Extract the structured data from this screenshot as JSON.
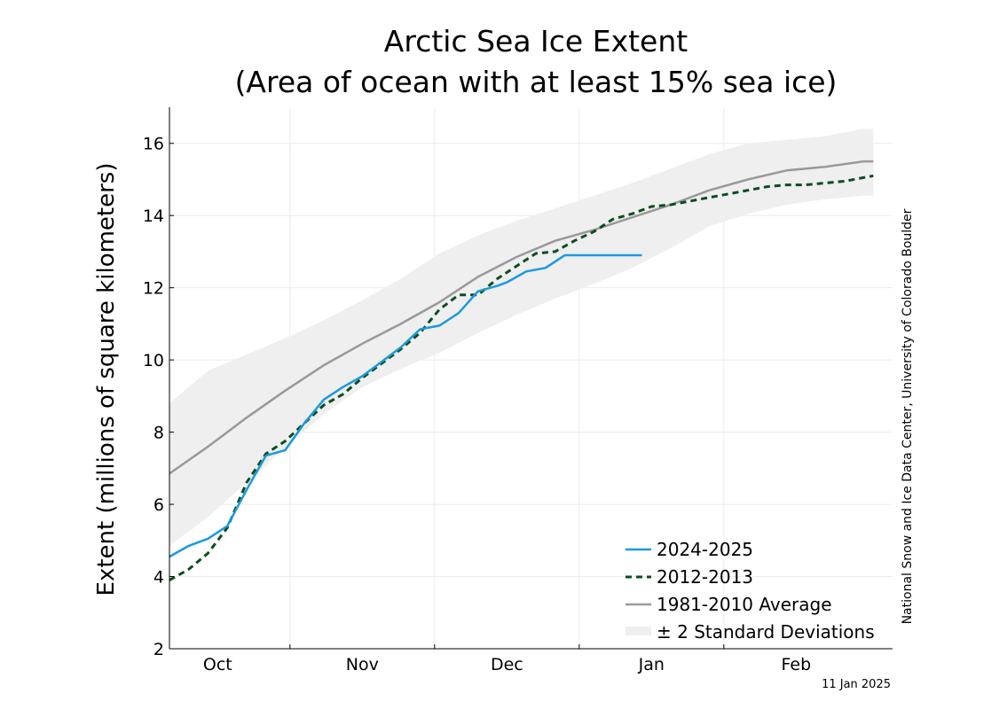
{
  "chart_data": {
    "type": "line",
    "title": "Arctic Sea Ice Extent",
    "subtitle": "(Area of ocean with at least 15% sea ice)",
    "ylabel": "Extent (millions of square kilometers)",
    "xlabel": "",
    "ylim": [
      2,
      17
    ],
    "xlim": [
      0,
      150
    ],
    "yticks": [
      2,
      4,
      6,
      8,
      10,
      12,
      14,
      16
    ],
    "xticks": [
      {
        "label": "Oct",
        "pos": 10
      },
      {
        "label": "Nov",
        "pos": 40
      },
      {
        "label": "Dec",
        "pos": 70
      },
      {
        "label": "Jan",
        "pos": 100
      },
      {
        "label": "Feb",
        "pos": 130
      }
    ],
    "month_boundaries": [
      25,
      55,
      85,
      115
    ],
    "grid": true,
    "legend_position": "bottom-right",
    "credit": "National Snow and Ice Data Center, University of Colorado Boulder",
    "date_stamp": "11 Jan 2025",
    "colors": {
      "current": "#1a9ae0",
      "compare": "#0b4d1e",
      "average": "#999999",
      "band": "#efefef"
    },
    "series": [
      {
        "name": "2024-2025",
        "style": "solid",
        "x": [
          0,
          4,
          8,
          12,
          16,
          20,
          24,
          28,
          32,
          36,
          40,
          44,
          48,
          52,
          56,
          60,
          64,
          68,
          70,
          74,
          78,
          82,
          86,
          90,
          92,
          94,
          98
        ],
        "values": [
          4.55,
          4.85,
          5.05,
          5.4,
          6.4,
          7.35,
          7.5,
          8.25,
          8.9,
          9.25,
          9.55,
          9.95,
          10.35,
          10.85,
          10.95,
          11.3,
          11.9,
          12.05,
          12.15,
          12.45,
          12.55,
          12.9,
          12.9,
          12.9,
          12.9,
          12.9,
          12.9
        ]
      },
      {
        "name": "2012-2013",
        "style": "dashed",
        "x": [
          0,
          4,
          8,
          12,
          16,
          20,
          24,
          28,
          32,
          36,
          40,
          44,
          48,
          52,
          56,
          60,
          64,
          68,
          72,
          76,
          80,
          84,
          88,
          92,
          96,
          100,
          104,
          108,
          112,
          116,
          120,
          124,
          128,
          132,
          136,
          140,
          144,
          146
        ],
        "values": [
          3.9,
          4.2,
          4.65,
          5.35,
          6.6,
          7.4,
          7.75,
          8.25,
          8.75,
          9.05,
          9.5,
          9.9,
          10.3,
          10.75,
          11.4,
          11.8,
          11.8,
          12.25,
          12.6,
          12.95,
          13.0,
          13.3,
          13.55,
          13.9,
          14.05,
          14.25,
          14.3,
          14.4,
          14.5,
          14.6,
          14.7,
          14.8,
          14.85,
          14.85,
          14.9,
          14.95,
          15.05,
          15.1
        ]
      },
      {
        "name": "1981-2010 Average",
        "style": "solid",
        "x": [
          0,
          8,
          16,
          24,
          32,
          40,
          48,
          56,
          64,
          72,
          80,
          88,
          96,
          104,
          112,
          120,
          128,
          136,
          144,
          146
        ],
        "values": [
          6.85,
          7.6,
          8.4,
          9.15,
          9.85,
          10.45,
          11.0,
          11.6,
          12.3,
          12.85,
          13.3,
          13.6,
          13.95,
          14.3,
          14.7,
          15.0,
          15.25,
          15.35,
          15.5,
          15.5
        ]
      }
    ],
    "band": {
      "name": "± 2 Standard Deviations",
      "x": [
        0,
        8,
        16,
        24,
        32,
        40,
        48,
        56,
        64,
        72,
        80,
        88,
        96,
        104,
        112,
        120,
        128,
        136,
        144,
        146
      ],
      "upper": [
        8.8,
        9.7,
        10.15,
        10.6,
        11.1,
        11.65,
        12.25,
        12.95,
        13.45,
        13.85,
        14.2,
        14.55,
        14.9,
        15.3,
        15.7,
        16.0,
        16.1,
        16.2,
        16.4,
        16.4
      ],
      "lower": [
        4.85,
        5.65,
        6.6,
        7.55,
        8.5,
        9.25,
        9.75,
        10.2,
        10.75,
        11.25,
        11.7,
        12.1,
        12.55,
        13.1,
        13.7,
        14.05,
        14.3,
        14.45,
        14.55,
        14.55
      ]
    }
  }
}
